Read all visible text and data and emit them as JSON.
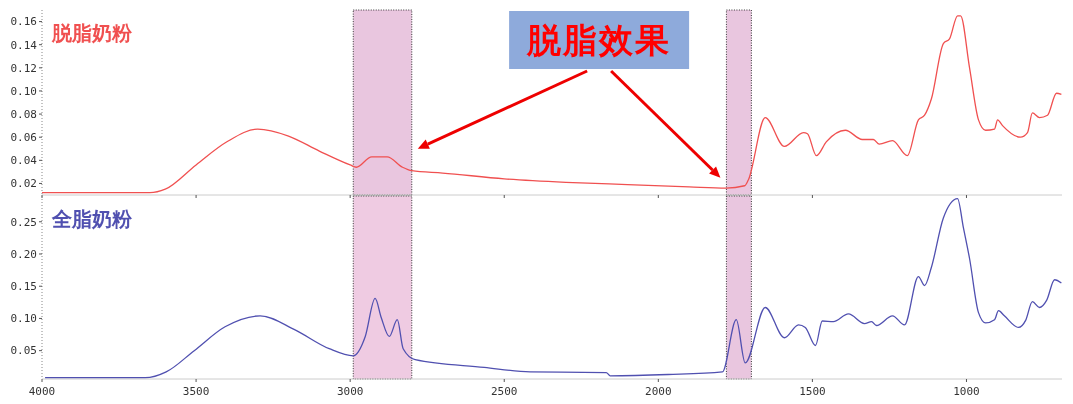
{
  "chart_data": [
    {
      "type": "line",
      "xlim": [
        4000,
        690
      ],
      "ylim": [
        0.01,
        0.17
      ],
      "xticks": [
        4000,
        3500,
        3000,
        2500,
        2000,
        1500,
        1000
      ],
      "yticks": [
        0.02,
        0.04,
        0.06,
        0.08,
        {
          "value": 0.1,
          "label": "0.10"
        },
        0.12,
        0.14,
        0.16
      ],
      "tick_labels": "y",
      "grid": false,
      "annotations": [
        "脱脂效果"
      ],
      "bands": [
        {
          "axis": "x",
          "from": 2990,
          "to": 2800,
          "color": "#e9c6df"
        },
        {
          "axis": "x",
          "from": 1779,
          "to": 1698,
          "color": "#e9c6df"
        }
      ],
      "series": [
        {
          "name": "脱脂奶粉",
          "color": "#f05050",
          "x": [
            4000,
            3650,
            3600,
            3500,
            3400,
            3300,
            3200,
            3100,
            3000,
            2980,
            2930,
            2880,
            2830,
            2800,
            2700,
            2500,
            2300,
            2100,
            1900,
            1780,
            1720,
            1708,
            1653,
            1591,
            1529,
            1516,
            1487,
            1455,
            1393,
            1338,
            1302,
            1283,
            1240,
            1192,
            1156,
            1136,
            1114,
            1075,
            1055,
            1029,
            1019,
            990,
            961,
            938,
            909,
            899,
            883,
            825,
            802,
            786,
            763,
            737,
            708,
            692
          ],
          "values": [
            0.012,
            0.012,
            0.015,
            0.036,
            0.056,
            0.067,
            0.061,
            0.048,
            0.036,
            0.034,
            0.043,
            0.043,
            0.034,
            0.031,
            0.029,
            0.024,
            0.021,
            0.019,
            0.017,
            0.016,
            0.018,
            0.023,
            0.077,
            0.052,
            0.064,
            0.063,
            0.044,
            0.056,
            0.066,
            0.058,
            0.058,
            0.054,
            0.057,
            0.044,
            0.075,
            0.079,
            0.093,
            0.141,
            0.145,
            0.165,
            0.165,
            0.12,
            0.075,
            0.066,
            0.067,
            0.075,
            0.07,
            0.06,
            0.064,
            0.081,
            0.077,
            0.079,
            0.098,
            0.097
          ]
        }
      ]
    },
    {
      "type": "line",
      "xlim": [
        4000,
        690
      ],
      "ylim": [
        0.006,
        0.29
      ],
      "xticks": [
        4000,
        3500,
        3000,
        2500,
        2000,
        1500,
        1000
      ],
      "yticks": [
        {
          "value": 0.05,
          "label": "0.05"
        },
        {
          "value": 0.1,
          "label": "0.10"
        },
        {
          "value": 0.15,
          "label": "0.15"
        },
        {
          "value": 0.2,
          "label": "0.20"
        },
        {
          "value": 0.25,
          "label": "0.25"
        }
      ],
      "grid": false,
      "bands": [
        {
          "axis": "x",
          "from": 2990,
          "to": 2800,
          "color": "#efcbe2"
        },
        {
          "axis": "x",
          "from": 1779,
          "to": 1698,
          "color": "#e9c6df"
        }
      ],
      "series": [
        {
          "name": "全脂奶粉",
          "color": "#5050b0",
          "x": [
            3990,
            3665,
            3597,
            3506,
            3406,
            3292,
            3182,
            3068,
            2990,
            2951,
            2919,
            2899,
            2873,
            2847,
            2828,
            2789,
            2565,
            2416,
            2169,
            2156,
            1968,
            1792,
            1747,
            1718,
            1653,
            1591,
            1545,
            1523,
            1490,
            1468,
            1432,
            1383,
            1331,
            1308,
            1292,
            1240,
            1201,
            1156,
            1136,
            1114,
            1075,
            1029,
            1010,
            990,
            961,
            938,
            909,
            896,
            877,
            831,
            808,
            786,
            763,
            740,
            714,
            692
          ],
          "values": [
            0.008,
            0.008,
            0.017,
            0.05,
            0.087,
            0.104,
            0.083,
            0.053,
            0.042,
            0.072,
            0.131,
            0.101,
            0.072,
            0.098,
            0.053,
            0.036,
            0.024,
            0.017,
            0.016,
            0.011,
            0.013,
            0.017,
            0.098,
            0.031,
            0.117,
            0.07,
            0.09,
            0.086,
            0.058,
            0.096,
            0.095,
            0.107,
            0.092,
            0.095,
            0.089,
            0.104,
            0.09,
            0.165,
            0.151,
            0.179,
            0.256,
            0.286,
            0.241,
            0.193,
            0.109,
            0.093,
            0.098,
            0.112,
            0.104,
            0.086,
            0.097,
            0.126,
            0.117,
            0.128,
            0.16,
            0.155
          ]
        }
      ]
    }
  ]
}
